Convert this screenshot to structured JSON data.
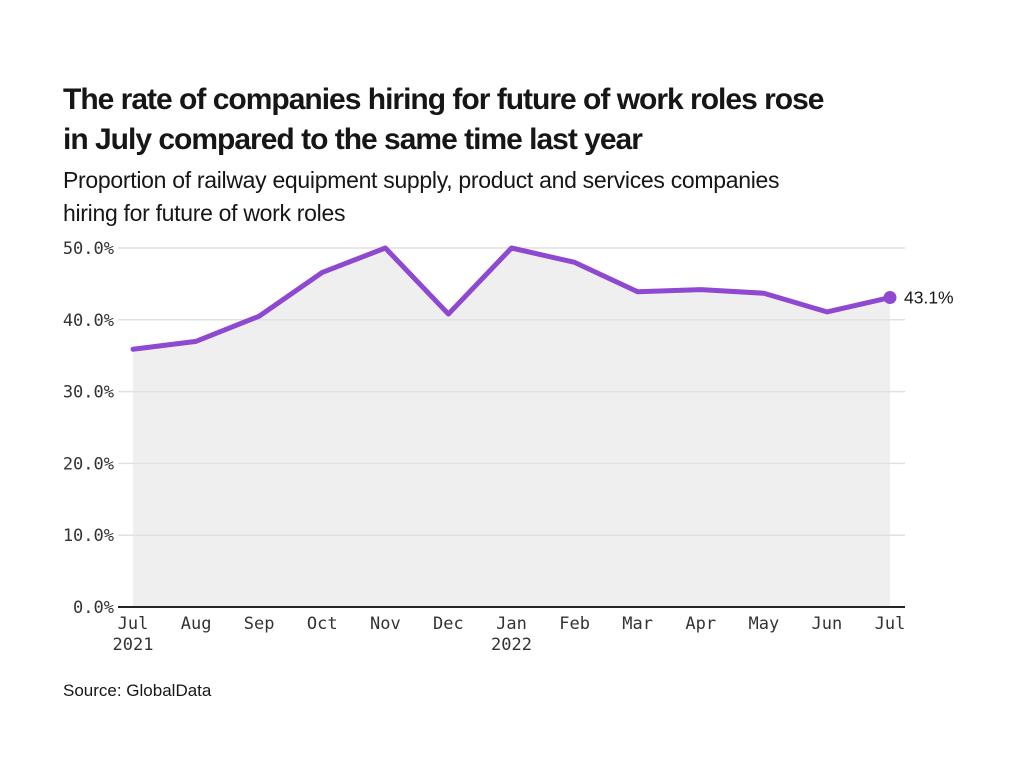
{
  "header": {
    "title_lines": [
      "The rate of companies hiring for future of work roles rose",
      "in July compared to the same time last year"
    ],
    "subtitle_lines": [
      "Proportion of railway equipment supply, product and services companies",
      "hiring for future of work roles"
    ]
  },
  "chart_data": {
    "type": "area",
    "title": "The rate of companies hiring for future of work roles rose in July compared to the same time last year",
    "subtitle": "Proportion of railway equipment supply, product and services companies hiring for future of work roles",
    "categories": [
      "Jul 2021",
      "Aug",
      "Sep",
      "Oct",
      "Nov",
      "Dec",
      "Jan 2022",
      "Feb",
      "Mar",
      "Apr",
      "May",
      "Jun",
      "Jul 2022"
    ],
    "values": [
      35.9,
      37.0,
      40.5,
      46.6,
      50.0,
      40.8,
      50.0,
      48.0,
      43.9,
      44.2,
      43.7,
      41.1,
      43.1
    ],
    "x_ticks": [
      {
        "label": "Jul",
        "sublabel": "2021"
      },
      {
        "label": "Aug",
        "sublabel": ""
      },
      {
        "label": "Sep",
        "sublabel": ""
      },
      {
        "label": "Oct",
        "sublabel": ""
      },
      {
        "label": "Nov",
        "sublabel": ""
      },
      {
        "label": "Dec",
        "sublabel": ""
      },
      {
        "label": "Jan",
        "sublabel": "2022"
      },
      {
        "label": "Feb",
        "sublabel": ""
      },
      {
        "label": "Mar",
        "sublabel": ""
      },
      {
        "label": "Apr",
        "sublabel": ""
      },
      {
        "label": "May",
        "sublabel": ""
      },
      {
        "label": "Jun",
        "sublabel": ""
      },
      {
        "label": "Jul",
        "sublabel": ""
      }
    ],
    "y_tick_values": [
      0,
      10,
      20,
      30,
      40,
      50
    ],
    "y_tick_labels": [
      "0.0%",
      "10.0%",
      "20.0%",
      "30.0%",
      "40.0%",
      "50.0%"
    ],
    "ylim": [
      0,
      50
    ],
    "xlabel": "",
    "ylabel": "",
    "grid": true,
    "legend": "none",
    "end_label": "43.1%",
    "colors": {
      "line": "#8f49d1",
      "area": "#efefef",
      "grid": "#e1e1e1",
      "axis": "#262626"
    }
  },
  "footer": {
    "source": "Source: GlobalData"
  }
}
